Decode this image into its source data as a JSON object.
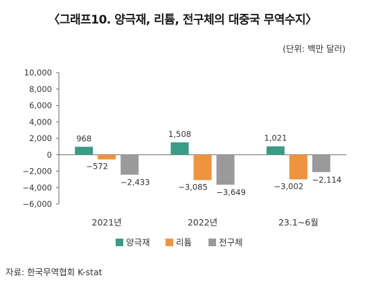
{
  "header": {
    "title": "〈그래프10. 양극재, 리튬, 전구체의 대중국 무역수지〉",
    "unit": "(단위: 백만 달러)"
  },
  "footer": {
    "source": "자료: 한국무역협회 K-stat"
  },
  "chart_data": {
    "type": "bar",
    "categories": [
      "2021년",
      "2022년",
      "23.1~6월"
    ],
    "series": [
      {
        "name": "양극재",
        "color": "#3a9b86",
        "values": [
          968,
          1508,
          1021
        ],
        "labels": [
          "968",
          "1,508",
          "1,021"
        ]
      },
      {
        "name": "리튬",
        "color": "#ee9340",
        "values": [
          -572,
          -3085,
          -3002
        ],
        "labels": [
          "−572",
          "−3,085",
          "−3,002"
        ]
      },
      {
        "name": "전구체",
        "color": "#9a9a9d",
        "values": [
          -2433,
          -3649,
          -2114
        ],
        "labels": [
          "−2,433",
          "−3,649",
          "−2,114"
        ]
      }
    ],
    "ylim": [
      -6000,
      10000
    ],
    "yticks": [
      10000,
      8000,
      6000,
      4000,
      2000,
      0,
      -2000,
      -4000,
      -6000
    ],
    "ytick_labels": [
      "10,000",
      "8,000",
      "6,000",
      "4,000",
      "2,000",
      "0",
      "−2,000",
      "−4,000",
      "−6,000"
    ],
    "grid": false,
    "legend_position": "bottom-center"
  }
}
